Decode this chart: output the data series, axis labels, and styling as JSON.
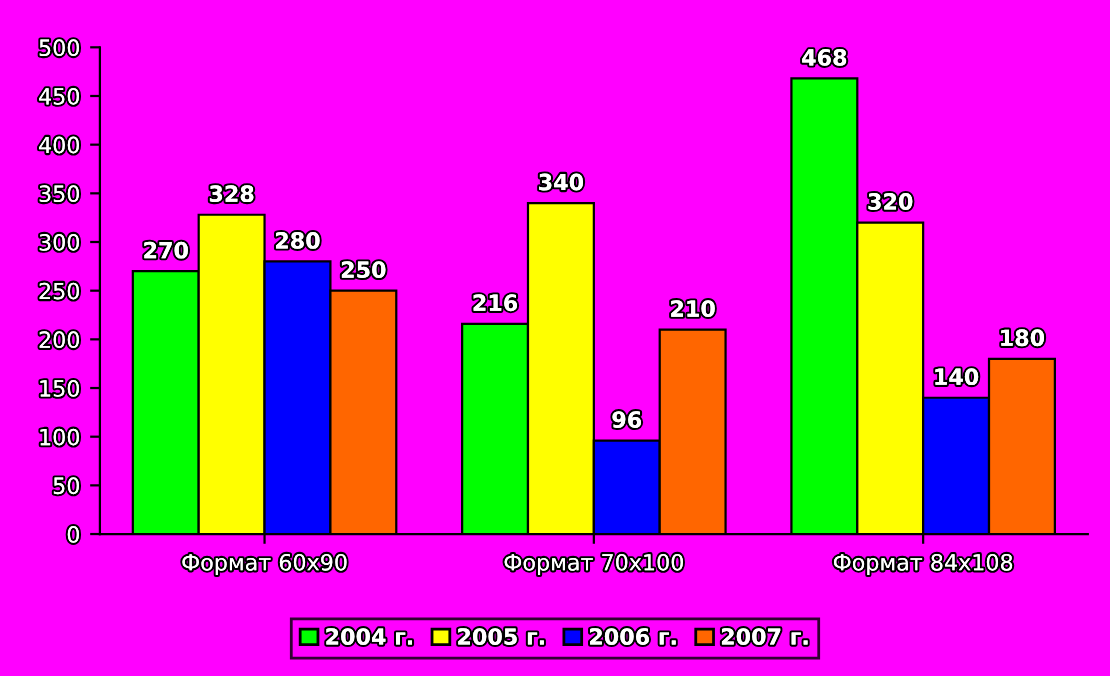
{
  "chart_data": {
    "type": "bar",
    "categories": [
      "Формат 60x90",
      "Формат 70x100",
      "Формат 84x108"
    ],
    "series": [
      {
        "name": "2004 г.",
        "color": "#00ff00",
        "values": [
          270,
          216,
          468
        ]
      },
      {
        "name": "2005 г.",
        "color": "#ffff00",
        "values": [
          328,
          340,
          320
        ]
      },
      {
        "name": "2006 г.",
        "color": "#0000ff",
        "values": [
          280,
          96,
          140
        ]
      },
      {
        "name": "2007 г.",
        "color": "#ff6600",
        "values": [
          250,
          210,
          180
        ]
      }
    ],
    "ylim": [
      0,
      500
    ],
    "yticks": [
      0,
      50,
      100,
      150,
      200,
      250,
      300,
      350,
      400,
      450,
      500
    ],
    "data_labels": true,
    "legend": "bottom",
    "grid": false
  }
}
